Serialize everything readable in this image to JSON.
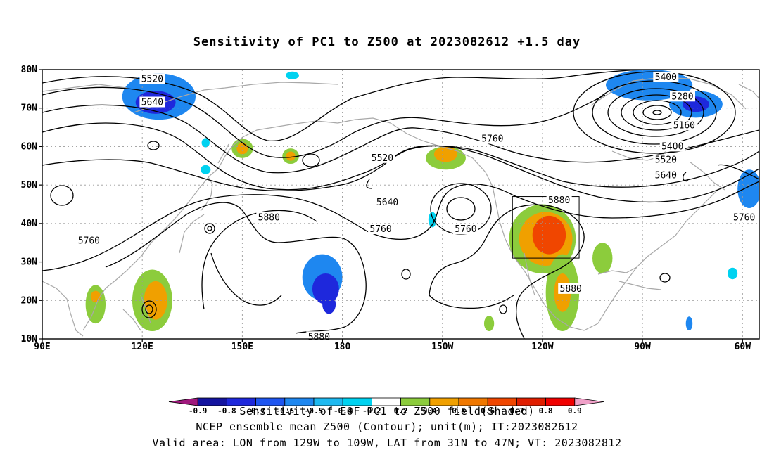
{
  "title": "Sensitivity of PC1 to Z500 at 2023082612 +1.5 day",
  "captions": [
    "Sensitivity of EOF PC1 to Z500 field(Shaded)",
    "NCEP ensemble mean Z500 (Contour); unit(m); IT:2023082612",
    "Valid area: LON from 129W to 109W, LAT from 31N to 47N; VT: 2023082812"
  ],
  "map": {
    "lon_range": [
      90,
      305
    ],
    "lat_range": [
      10,
      80
    ],
    "lat_ticks": [
      {
        "value": 10,
        "label": "10N"
      },
      {
        "value": 20,
        "label": "20N"
      },
      {
        "value": 30,
        "label": "30N"
      },
      {
        "value": 40,
        "label": "40N"
      },
      {
        "value": 50,
        "label": "50N"
      },
      {
        "value": 60,
        "label": "60N"
      },
      {
        "value": 70,
        "label": "70N"
      },
      {
        "value": 80,
        "label": "80N"
      }
    ],
    "lon_ticks": [
      {
        "value": 90,
        "label": "90E"
      },
      {
        "value": 120,
        "label": "120E"
      },
      {
        "value": 150,
        "label": "150E"
      },
      {
        "value": 180,
        "label": "180"
      },
      {
        "value": 210,
        "label": "150W"
      },
      {
        "value": 240,
        "label": "120W"
      },
      {
        "value": 270,
        "label": "90W"
      },
      {
        "value": 300,
        "label": "60W"
      }
    ],
    "grid": true,
    "valid_area": {
      "lon_min": 231,
      "lon_max": 251,
      "lat_min": 31,
      "lat_max": 47
    },
    "contour_labels": [
      {
        "text": "5520",
        "lon": 123,
        "lat": 77.5
      },
      {
        "text": "5640",
        "lon": 123,
        "lat": 71.5
      },
      {
        "text": "5400",
        "lon": 277,
        "lat": 78
      },
      {
        "text": "5280",
        "lon": 282,
        "lat": 73
      },
      {
        "text": "5160",
        "lon": 282.5,
        "lat": 65.5
      },
      {
        "text": "5760",
        "lon": 225,
        "lat": 62
      },
      {
        "text": "5520",
        "lon": 192,
        "lat": 57
      },
      {
        "text": "5400",
        "lon": 279,
        "lat": 60
      },
      {
        "text": "5520",
        "lon": 277,
        "lat": 56.5
      },
      {
        "text": "5640",
        "lon": 277,
        "lat": 52.5
      },
      {
        "text": "5640",
        "lon": 193.5,
        "lat": 45.5
      },
      {
        "text": "5880",
        "lon": 245,
        "lat": 46
      },
      {
        "text": "5880",
        "lon": 158,
        "lat": 41.5
      },
      {
        "text": "5760",
        "lon": 300.5,
        "lat": 41.5
      },
      {
        "text": "5760",
        "lon": 104,
        "lat": 35.5
      },
      {
        "text": "5760",
        "lon": 191.5,
        "lat": 38.5
      },
      {
        "text": "5760",
        "lon": 217,
        "lat": 38.5
      },
      {
        "text": "5880",
        "lon": 248.5,
        "lat": 23
      },
      {
        "text": "5880",
        "lon": 173,
        "lat": 10.5
      }
    ],
    "shading": [
      {
        "lon": 125,
        "lat": 73,
        "rx": 11,
        "ry": 6,
        "level": -0.3
      },
      {
        "lon": 124,
        "lat": 71.5,
        "rx": 6,
        "ry": 3,
        "level": -0.6
      },
      {
        "lon": 139,
        "lat": 61,
        "rx": 1.2,
        "ry": 1.2,
        "level": -0.2
      },
      {
        "lon": 139,
        "lat": 54,
        "rx": 1.5,
        "ry": 1.2,
        "level": -0.2
      },
      {
        "lon": 165,
        "lat": 78.5,
        "rx": 2,
        "ry": 1,
        "level": -0.1
      },
      {
        "lon": 207,
        "lat": 41,
        "rx": 1.2,
        "ry": 2,
        "level": -0.2
      },
      {
        "lon": 272,
        "lat": 76,
        "rx": 13,
        "ry": 4,
        "level": -0.3
      },
      {
        "lon": 286,
        "lat": 71,
        "rx": 8,
        "ry": 3.5,
        "level": -0.3
      },
      {
        "lon": 286,
        "lat": 71,
        "rx": 4,
        "ry": 2,
        "level": -0.6
      },
      {
        "lon": 302,
        "lat": 49,
        "rx": 3.5,
        "ry": 5,
        "level": -0.3
      },
      {
        "lon": 297,
        "lat": 27,
        "rx": 1.5,
        "ry": 1.5,
        "level": -0.2
      },
      {
        "lon": 174,
        "lat": 26,
        "rx": 6,
        "ry": 6,
        "level": -0.3
      },
      {
        "lon": 175,
        "lat": 23,
        "rx": 4,
        "ry": 4,
        "level": -0.6
      },
      {
        "lon": 176,
        "lat": 19,
        "rx": 2,
        "ry": 2.5,
        "level": -0.6
      },
      {
        "lon": 284,
        "lat": 14,
        "rx": 1,
        "ry": 1.8,
        "level": -0.3
      },
      {
        "lon": 150,
        "lat": 59.5,
        "rx": 3.2,
        "ry": 2.5,
        "level": 0.2
      },
      {
        "lon": 150,
        "lat": 59.5,
        "rx": 1.7,
        "ry": 1.5,
        "level": 0.5
      },
      {
        "lon": 164.5,
        "lat": 57.5,
        "rx": 2.5,
        "ry": 2,
        "level": 0.2
      },
      {
        "lon": 164.5,
        "lat": 57.5,
        "rx": 1.4,
        "ry": 1.2,
        "level": 0.5
      },
      {
        "lon": 211,
        "lat": 57,
        "rx": 6,
        "ry": 3,
        "level": 0.2
      },
      {
        "lon": 211,
        "lat": 58,
        "rx": 3.5,
        "ry": 2,
        "level": 0.5
      },
      {
        "lon": 240,
        "lat": 36,
        "rx": 10,
        "ry": 9,
        "level": 0.2
      },
      {
        "lon": 241,
        "lat": 36,
        "rx": 8,
        "ry": 7,
        "level": 0.5
      },
      {
        "lon": 242,
        "lat": 37,
        "rx": 5,
        "ry": 5,
        "level": 0.7
      },
      {
        "lon": 246,
        "lat": 22,
        "rx": 5,
        "ry": 10,
        "level": 0.2
      },
      {
        "lon": 246,
        "lat": 22,
        "rx": 2.5,
        "ry": 5,
        "level": 0.5
      },
      {
        "lon": 258,
        "lat": 31,
        "rx": 3,
        "ry": 4,
        "level": 0.2
      },
      {
        "lon": 123,
        "lat": 20,
        "rx": 6,
        "ry": 8,
        "level": 0.2
      },
      {
        "lon": 124,
        "lat": 20,
        "rx": 3.5,
        "ry": 5,
        "level": 0.5
      },
      {
        "lon": 106,
        "lat": 19,
        "rx": 3,
        "ry": 5,
        "level": 0.2
      },
      {
        "lon": 106,
        "lat": 21,
        "rx": 1.5,
        "ry": 1.5,
        "level": 0.5
      },
      {
        "lon": 224,
        "lat": 14,
        "rx": 1.5,
        "ry": 2,
        "level": 0.2
      }
    ]
  },
  "colorbar": {
    "colors": [
      "#a0197d",
      "#1414a0",
      "#1e28dc",
      "#1e55f0",
      "#1e87f0",
      "#1eb9f0",
      "#00d2f0",
      "#ffffff",
      "#8ccc3c",
      "#f0a000",
      "#f07800",
      "#f04600",
      "#e01e00",
      "#f00000",
      "#f0a0c8"
    ],
    "labels": [
      "-0.9",
      "-0.8",
      "-0.7",
      "-0.6",
      "-0.5",
      "-0.4",
      "-0.2",
      "0.2",
      "0.4",
      "0.5",
      "0.6",
      "0.7",
      "0.8",
      "0.9"
    ]
  }
}
